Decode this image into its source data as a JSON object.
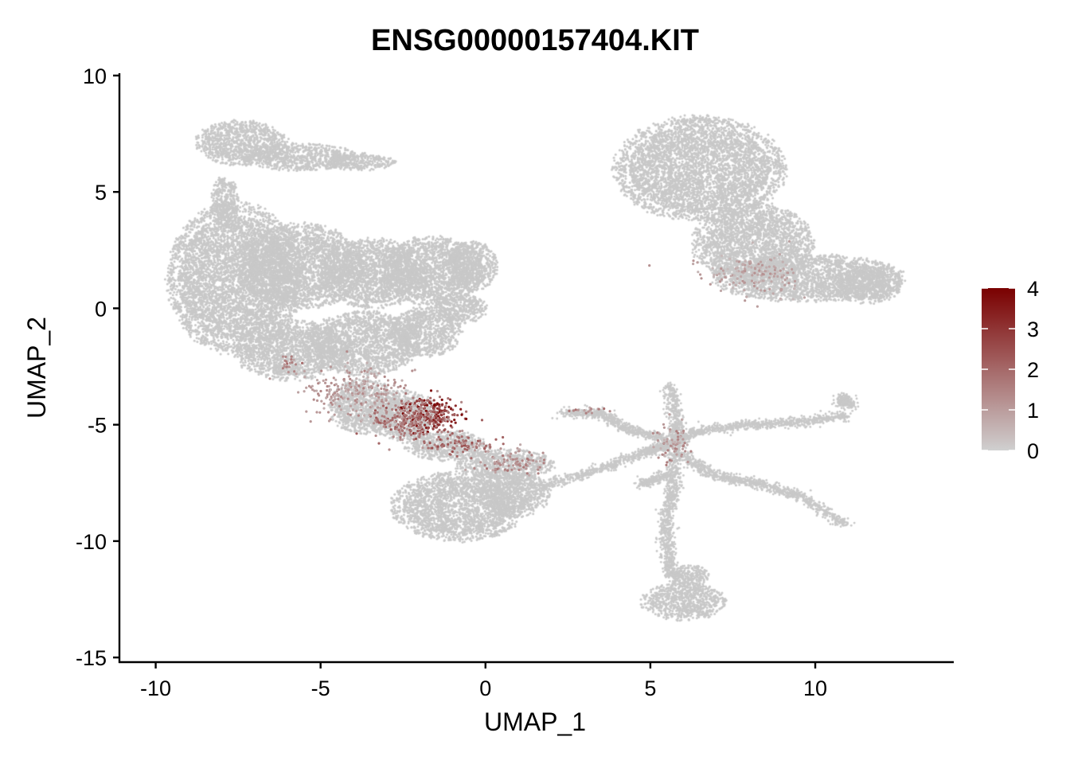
{
  "chart_data": {
    "type": "scatter",
    "title": "ENSG00000157404.KIT",
    "xlabel": "UMAP_1",
    "ylabel": "UMAP_2",
    "xlim": [
      -11.1,
      14.2
    ],
    "ylim": [
      -15.2,
      10.1
    ],
    "xticks": [
      -10,
      -5,
      0,
      5,
      10
    ],
    "yticks": [
      -15,
      -10,
      -5,
      0,
      5,
      10
    ],
    "xtick_labels": [
      "-10",
      "-5",
      "0",
      "5",
      "10"
    ],
    "ytick_labels": [
      "-15",
      "-10",
      "-5",
      "0",
      "5",
      "10"
    ],
    "grid": false,
    "legend": {
      "type": "colorbar",
      "placement": "right",
      "min": 0,
      "max": 4,
      "ticks": [
        0,
        1,
        2,
        3,
        4
      ],
      "tick_labels": [
        "0",
        "1",
        "2",
        "3",
        "4"
      ],
      "color_low": "#d0d0d0",
      "color_high": "#7a0000"
    },
    "background_color": "#c8c8c8",
    "clusters": [
      {
        "cx": -7.4,
        "cy": 7.1,
        "rx": 1.3,
        "ry": 0.9
      },
      {
        "cx": -5.6,
        "cy": 6.5,
        "rx": 1.6,
        "ry": 0.55
      },
      {
        "cx": -3.8,
        "cy": 6.3,
        "rx": 1.0,
        "ry": 0.35
      },
      {
        "cx": -7.9,
        "cy": 4.6,
        "rx": 0.4,
        "ry": 1.0
      },
      {
        "cx": -7.6,
        "cy": 1.3,
        "rx": 1.9,
        "ry": 3.0
      },
      {
        "cx": -5.6,
        "cy": 1.8,
        "rx": 1.8,
        "ry": 1.7
      },
      {
        "cx": -3.4,
        "cy": 1.5,
        "rx": 1.5,
        "ry": 1.4
      },
      {
        "cx": -1.6,
        "cy": 1.6,
        "rx": 1.4,
        "ry": 1.4
      },
      {
        "cx": -0.4,
        "cy": 1.8,
        "rx": 0.7,
        "ry": 1.0
      },
      {
        "cx": -0.8,
        "cy": 0.0,
        "rx": 0.8,
        "ry": 0.6
      },
      {
        "cx": -5.9,
        "cy": -1.8,
        "rx": 1.6,
        "ry": 1.2
      },
      {
        "cx": -3.7,
        "cy": -1.5,
        "rx": 1.6,
        "ry": 1.3
      },
      {
        "cx": -1.8,
        "cy": -1.0,
        "rx": 1.0,
        "ry": 1.0
      },
      {
        "cx": -3.7,
        "cy": -4.2,
        "rx": 1.0,
        "ry": 1.1
      },
      {
        "cx": -2.5,
        "cy": -4.6,
        "rx": 1.0,
        "ry": 1.0
      },
      {
        "cx": -1.2,
        "cy": -5.9,
        "rx": 1.2,
        "ry": 0.6
      },
      {
        "cx": 0.6,
        "cy": -6.7,
        "rx": 1.4,
        "ry": 0.6
      },
      {
        "cx": -0.8,
        "cy": -8.5,
        "rx": 1.9,
        "ry": 1.4
      },
      {
        "cx": 0.9,
        "cy": -8.0,
        "rx": 1.0,
        "ry": 0.9
      },
      {
        "cx": 6.5,
        "cy": 6.0,
        "rx": 2.4,
        "ry": 2.1
      },
      {
        "cx": 8.1,
        "cy": 2.8,
        "rx": 1.7,
        "ry": 1.6
      },
      {
        "cx": 9.8,
        "cy": 1.3,
        "rx": 2.7,
        "ry": 0.95
      },
      {
        "cx": 11.6,
        "cy": 1.0,
        "rx": 1.0,
        "ry": 0.75
      },
      {
        "cx": 6.0,
        "cy": -12.6,
        "rx": 1.2,
        "ry": 0.75
      },
      {
        "cx": 6.2,
        "cy": -11.5,
        "rx": 0.55,
        "ry": 0.45
      }
    ],
    "filaments": [
      [
        [
          2.4,
          -4.5
        ],
        [
          3.5,
          -4.5
        ],
        [
          4.3,
          -5.2
        ],
        [
          5.4,
          -5.6
        ]
      ],
      [
        [
          1.6,
          -7.7
        ],
        [
          3.3,
          -7.0
        ],
        [
          4.8,
          -6.2
        ],
        [
          5.5,
          -5.9
        ]
      ],
      [
        [
          5.5,
          -5.9
        ],
        [
          6.4,
          -5.3
        ],
        [
          8.0,
          -5.0
        ],
        [
          9.5,
          -4.9
        ],
        [
          11.0,
          -4.6
        ]
      ],
      [
        [
          5.9,
          -6.2
        ],
        [
          6.9,
          -7.2
        ],
        [
          8.2,
          -7.5
        ],
        [
          9.6,
          -8.1
        ],
        [
          10.9,
          -9.3
        ]
      ],
      [
        [
          5.8,
          -5.8
        ],
        [
          5.7,
          -7.6
        ],
        [
          5.5,
          -8.9
        ],
        [
          5.5,
          -10.4
        ],
        [
          5.7,
          -11.7
        ]
      ],
      [
        [
          5.6,
          -3.3
        ],
        [
          5.8,
          -5.0
        ],
        [
          5.8,
          -5.8
        ]
      ],
      [
        [
          4.7,
          -7.6
        ],
        [
          5.6,
          -7.1
        ]
      ],
      [
        [
          10.8,
          -3.8
        ],
        [
          11.0,
          -4.2
        ]
      ]
    ],
    "expression_hotspots": [
      {
        "cx": -1.6,
        "cy": -4.6,
        "sx": 0.8,
        "sy": 0.7,
        "level": 3.0
      },
      {
        "cx": -2.4,
        "cy": -4.9,
        "sx": 1.0,
        "sy": 0.8,
        "level": 1.8
      },
      {
        "cx": -0.8,
        "cy": -5.9,
        "sx": 1.0,
        "sy": 0.4,
        "level": 1.9
      },
      {
        "cx": 0.8,
        "cy": -6.6,
        "sx": 1.0,
        "sy": 0.5,
        "level": 1.3
      },
      {
        "cx": -4.0,
        "cy": -3.6,
        "sx": 1.6,
        "sy": 1.0,
        "level": 1.1
      },
      {
        "cx": -6.0,
        "cy": -2.3,
        "sx": 0.3,
        "sy": 0.3,
        "level": 1.5
      },
      {
        "cx": 3.2,
        "cy": -4.4,
        "sx": 0.6,
        "sy": 0.15,
        "level": 1.4
      },
      {
        "cx": 5.7,
        "cy": -5.8,
        "sx": 0.5,
        "sy": 0.8,
        "level": 1.2
      },
      {
        "cx": 8.0,
        "cy": 1.5,
        "sx": 1.5,
        "sy": 0.8,
        "level": 0.9
      }
    ],
    "n_background_points": 36000,
    "n_expressing_points": 1100
  }
}
